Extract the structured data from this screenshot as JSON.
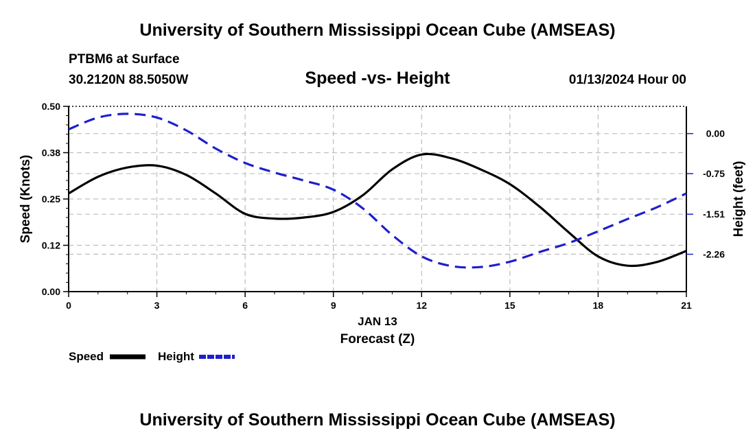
{
  "header": {
    "title": "University of Southern Mississippi Ocean Cube (AMSEAS)",
    "station": "PTBM6 at Surface",
    "coords": "30.2120N  88.5050W",
    "subtitle": "Speed -vs- Height",
    "datetime": "01/13/2024 Hour 00"
  },
  "footer": {
    "title": "University of Southern Mississippi Ocean Cube (AMSEAS)"
  },
  "chart_data": {
    "type": "line",
    "x": [
      0,
      1,
      2,
      3,
      4,
      5,
      6,
      7,
      8,
      9,
      10,
      11,
      12,
      13,
      14,
      15,
      16,
      17,
      18,
      19,
      20,
      21
    ],
    "x_ticks": [
      0,
      3,
      6,
      9,
      12,
      15,
      18,
      21
    ],
    "x_tick_labels": [
      "0",
      "3",
      "6",
      "9",
      "12",
      "15",
      "18",
      "21"
    ],
    "xlim": [
      0,
      21
    ],
    "xlabel_date": "JAN 13",
    "xlabel": "Forecast (Z)",
    "left_axis": {
      "label": "Speed (Knots)",
      "ylim": [
        0,
        0.5
      ],
      "ticks": [
        0.0,
        0.125,
        0.25,
        0.375,
        0.5
      ],
      "tick_labels": [
        "0.00",
        "0.12",
        "0.25",
        "0.38",
        "0.50"
      ]
    },
    "right_axis": {
      "label": "Height (feet)",
      "ylim": [
        -2.96,
        0.51
      ],
      "ticks": [
        0.0,
        -0.75,
        -1.51,
        -2.26
      ],
      "tick_labels": [
        "0.00",
        "-0.75",
        "-1.51",
        "-2.26"
      ]
    },
    "series": [
      {
        "name": "Speed",
        "axis": "left",
        "color": "#000000",
        "style": "solid",
        "values": [
          0.265,
          0.31,
          0.335,
          0.34,
          0.315,
          0.265,
          0.21,
          0.197,
          0.2,
          0.215,
          0.26,
          0.33,
          0.37,
          0.36,
          0.33,
          0.29,
          0.23,
          0.16,
          0.095,
          0.07,
          0.08,
          0.11
        ]
      },
      {
        "name": "Height",
        "axis": "right",
        "color": "#1f1fcc",
        "style": "dashed",
        "values": [
          0.08,
          0.3,
          0.37,
          0.3,
          0.06,
          -0.28,
          -0.55,
          -0.73,
          -0.88,
          -1.05,
          -1.4,
          -1.9,
          -2.3,
          -2.48,
          -2.5,
          -2.4,
          -2.22,
          -2.05,
          -1.83,
          -1.6,
          -1.38,
          -1.12
        ]
      }
    ],
    "legend": [
      {
        "name": "Speed",
        "color": "#000000"
      },
      {
        "name": "Height",
        "color": "#1f1fcc"
      }
    ],
    "grid": true
  }
}
